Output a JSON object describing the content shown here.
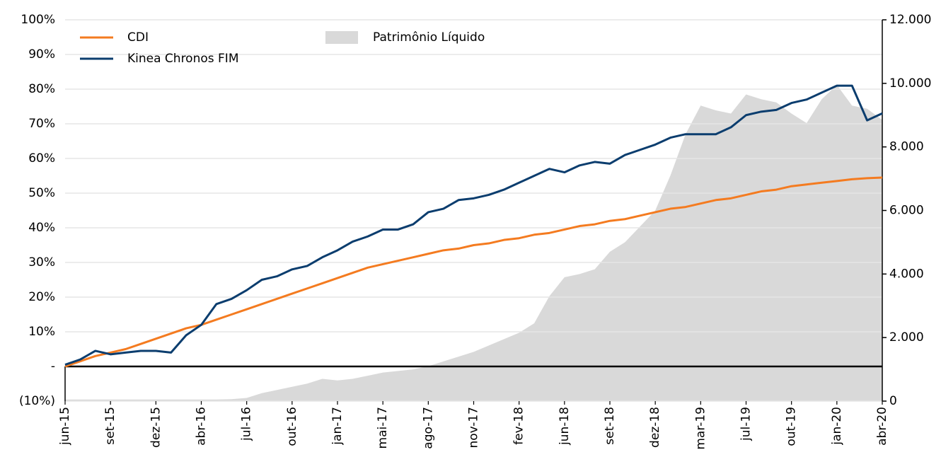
{
  "chart_data": {
    "type": "line",
    "categories": [
      "jun-15",
      null,
      null,
      "set-15",
      null,
      null,
      "dez-15",
      null,
      null,
      "abr-16",
      null,
      null,
      "jul-16",
      null,
      null,
      "out-16",
      null,
      null,
      "jan-17",
      null,
      null,
      "mai-17",
      null,
      null,
      "ago-17",
      null,
      null,
      "nov-17",
      null,
      null,
      "fev-18",
      null,
      null,
      "jun-18",
      null,
      null,
      "set-18",
      null,
      null,
      "dez-18",
      null,
      null,
      "mar-19",
      null,
      null,
      "jul-19",
      null,
      null,
      "out-19",
      null,
      null,
      "jan-20",
      null,
      null,
      "abr-20"
    ],
    "series": [
      {
        "name": "Patrimônio Líquido",
        "color": "#d9d9d9",
        "style": "area",
        "axis": "y2",
        "values": [
          50,
          50,
          50,
          50,
          50,
          50,
          50,
          50,
          50,
          50,
          50,
          60,
          100,
          250,
          350,
          450,
          550,
          700,
          650,
          700,
          800,
          900,
          950,
          1000,
          1100,
          1250,
          1400,
          1550,
          1750,
          1950,
          2150,
          2450,
          3300,
          3900,
          4000,
          4150,
          4700,
          5000,
          5500,
          6000,
          7100,
          8400,
          9300,
          9150,
          9050,
          9650,
          9500,
          9400,
          9050,
          8750,
          9500,
          9950,
          9300,
          9200,
          8850
        ]
      },
      {
        "name": "CDI",
        "color": "#f47b20",
        "values": [
          0,
          1.5,
          3,
          4,
          5,
          6.5,
          8,
          9.5,
          11,
          12,
          13.5,
          15,
          16.5,
          18,
          19.5,
          21,
          22.5,
          24,
          25.5,
          27,
          28.5,
          29.5,
          30.5,
          31.5,
          32.5,
          33.5,
          34,
          35,
          35.5,
          36.5,
          37,
          38,
          38.5,
          39.5,
          40.5,
          41,
          42,
          42.5,
          43.5,
          44.5,
          45.5,
          46,
          47,
          48,
          48.5,
          49.5,
          50.5,
          51,
          52,
          52.5,
          53,
          53.5,
          54,
          54.3,
          54.5
        ]
      },
      {
        "name": "Kinea Chronos FIM",
        "color": "#0b3d6e",
        "values": [
          0.5,
          2,
          4.5,
          3.5,
          4,
          4.5,
          4.5,
          4,
          9,
          12,
          18,
          19.5,
          22,
          25,
          26,
          28,
          29,
          31.5,
          33.5,
          36,
          37.5,
          39.5,
          39.5,
          41,
          44.5,
          45.5,
          48,
          48.5,
          49.5,
          51,
          53,
          55,
          57,
          56,
          58,
          59,
          58.5,
          61,
          62.5,
          64,
          66,
          67,
          67,
          67,
          69,
          72.5,
          73.5,
          74,
          76,
          77,
          79,
          81,
          81,
          71,
          73
        ]
      }
    ],
    "ylim": [
      -10,
      100
    ],
    "yticks": [
      {
        "value": -10,
        "label": "(10%)"
      },
      {
        "value": 0,
        "label": "-"
      },
      {
        "value": 10,
        "label": "10%"
      },
      {
        "value": 20,
        "label": "20%"
      },
      {
        "value": 30,
        "label": "30%"
      },
      {
        "value": 40,
        "label": "40%"
      },
      {
        "value": 50,
        "label": "50%"
      },
      {
        "value": 60,
        "label": "60%"
      },
      {
        "value": 70,
        "label": "70%"
      },
      {
        "value": 80,
        "label": "80%"
      },
      {
        "value": 90,
        "label": "90%"
      },
      {
        "value": 100,
        "label": "100%"
      }
    ],
    "y2lim": [
      0,
      12000
    ],
    "y2ticks": [
      0,
      {
        "value": 2000,
        "label": "2.000"
      },
      {
        "value": 4000,
        "label": "4.000"
      },
      {
        "value": 6000,
        "label": "6.000"
      },
      {
        "value": 8000,
        "label": "8.000"
      },
      {
        "value": 10000,
        "label": "10.000"
      },
      {
        "value": 12000,
        "label": "12.000"
      }
    ],
    "grid": true,
    "legend": "top-left"
  }
}
